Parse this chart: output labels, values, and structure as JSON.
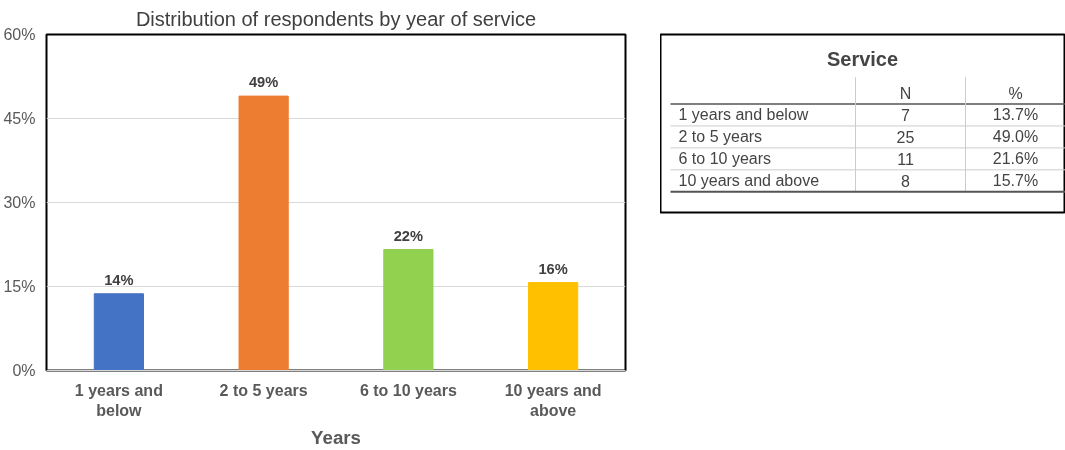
{
  "chart_data": [
    {
      "type": "bar",
      "title": "Distribution of respondents by year of service",
      "xlabel": "Years",
      "categories": [
        "1 years and below",
        "2 to 5 years",
        "6 to 10 years",
        "10 years and above"
      ],
      "values": [
        13.7,
        49.0,
        21.6,
        15.7
      ],
      "colors": [
        "#4472c4",
        "#ed7d31",
        "#92d050",
        "#ffc000"
      ],
      "value_labels": [
        "14%",
        "49%",
        "22%",
        "16%"
      ],
      "ylim": [
        0,
        60
      ],
      "yticks": [
        {
          "value": 0,
          "label": "0%"
        },
        {
          "value": 15,
          "label": "15%"
        },
        {
          "value": 30,
          "label": "30%"
        },
        {
          "value": 45,
          "label": "45%"
        },
        {
          "value": 60,
          "label": "60%"
        }
      ],
      "grid": "y"
    },
    {
      "type": "other",
      "title": "Service",
      "categories": [
        "1 years and below",
        "2 to 5 years",
        "6 to 10 years",
        "10 years and above"
      ],
      "series": [
        {
          "name": "N",
          "values": [
            7,
            25,
            11,
            8
          ]
        },
        {
          "name": "%",
          "values": [
            13.7,
            49.0,
            21.6,
            15.7
          ],
          "value_labels": [
            "13.7%",
            "49.0%",
            "21.6%",
            "15.7%"
          ]
        }
      ],
      "data_labels": true
    }
  ]
}
